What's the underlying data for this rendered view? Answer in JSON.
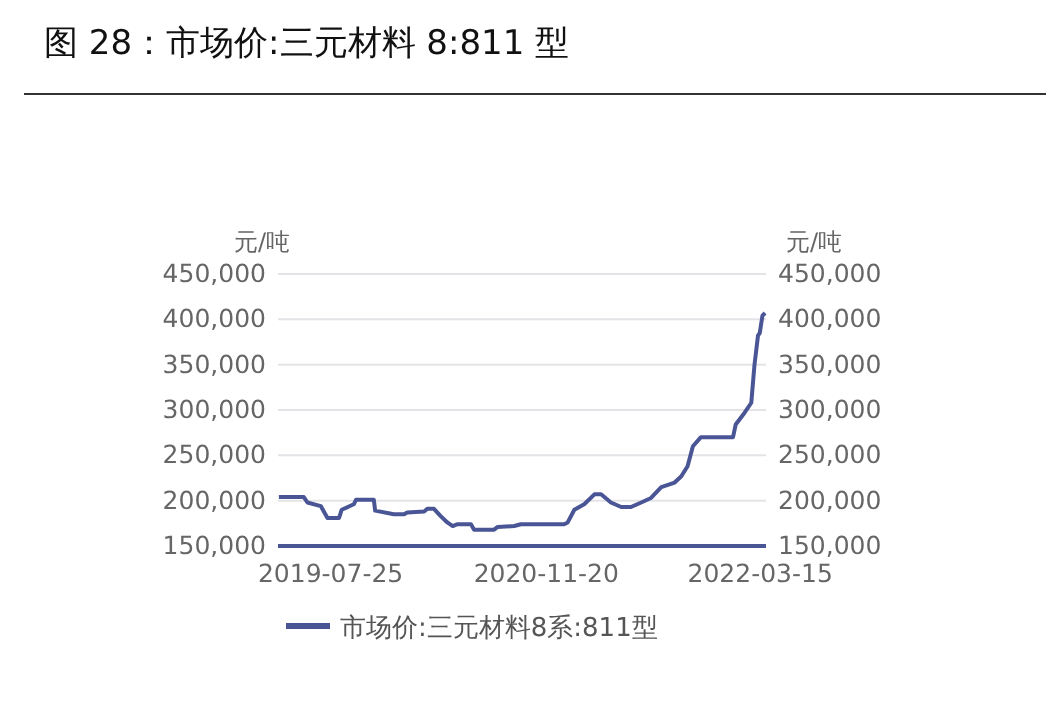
{
  "chart_data": {
    "type": "line",
    "title": "图 28：市场价:三元材料 8:811 型",
    "ylabel": "元/吨",
    "y2label": "元/吨",
    "x": [
      "2019-03-31",
      "2019-05-26",
      "2019-06-03",
      "2019-07-03",
      "2019-07-18",
      "2019-08-13",
      "2019-08-19",
      "2019-09-15",
      "2019-09-20",
      "2019-10-30",
      "2019-11-02",
      "2019-12-14",
      "2020-01-06",
      "2020-01-13",
      "2020-02-20",
      "2020-02-27",
      "2020-03-13",
      "2020-03-28",
      "2020-04-12",
      "2020-04-24",
      "2020-05-05",
      "2020-06-04",
      "2020-06-11",
      "2020-07-26",
      "2020-08-03",
      "2020-09-09",
      "2020-09-24",
      "2020-12-30",
      "2021-01-07",
      "2021-01-22",
      "2021-02-13",
      "2021-03-08",
      "2021-03-23",
      "2021-04-14",
      "2021-05-07",
      "2021-05-29",
      "2021-06-21",
      "2021-07-13",
      "2021-08-05",
      "2021-09-04",
      "2021-09-19",
      "2021-10-03",
      "2021-10-15",
      "2021-11-02",
      "2022-01-13",
      "2022-01-19",
      "2022-02-08",
      "2022-02-23",
      "2022-03-02",
      "2022-03-10",
      "2022-03-14",
      "2022-03-20",
      "2022-03-26"
    ],
    "series": [
      {
        "name": "市场价:三元材料8系:811型",
        "color": "#4a5596",
        "values": [
          204000,
          204000,
          198000,
          194000,
          181000,
          181000,
          190000,
          196000,
          201000,
          201000,
          189000,
          185000,
          185000,
          187000,
          188000,
          191000,
          191000,
          183000,
          176000,
          172000,
          174000,
          174000,
          168000,
          168000,
          171000,
          172000,
          174000,
          174000,
          176000,
          190000,
          196000,
          207000,
          207000,
          198000,
          193000,
          193000,
          198000,
          203000,
          215000,
          220000,
          227000,
          238000,
          260000,
          270000,
          270000,
          284000,
          297000,
          308000,
          349000,
          382000,
          385000,
          404000,
          407000
        ]
      }
    ],
    "xlim": [
      "2019-03-29",
      "2022-03-28"
    ],
    "xticks": [
      {
        "value": "2019-07-25",
        "label": "2019-07-25"
      },
      {
        "value": "2020-11-20",
        "label": "2020-11-20"
      },
      {
        "value": "2022-03-15",
        "label": "2022-03-15"
      }
    ],
    "ylim": [
      150000,
      450000
    ],
    "yticks": [
      {
        "value": 150000,
        "label": "150,000"
      },
      {
        "value": 200000,
        "label": "200,000"
      },
      {
        "value": 250000,
        "label": "250,000"
      },
      {
        "value": 300000,
        "label": "300,000"
      },
      {
        "value": 350000,
        "label": "350,000"
      },
      {
        "value": 400000,
        "label": "400,000"
      },
      {
        "value": 450000,
        "label": "450,000"
      }
    ],
    "y2lim": [
      150000,
      450000
    ],
    "y2ticks": [
      {
        "value": 150000,
        "label": "150,000"
      },
      {
        "value": 200000,
        "label": "200,000"
      },
      {
        "value": 250000,
        "label": "250,000"
      },
      {
        "value": 300000,
        "label": "300,000"
      },
      {
        "value": 350000,
        "label": "350,000"
      },
      {
        "value": 400000,
        "label": "400,000"
      },
      {
        "value": 450000,
        "label": "450,000"
      }
    ],
    "grid": "y",
    "legend": "bottom",
    "line_style": "solid",
    "marker": "none"
  }
}
